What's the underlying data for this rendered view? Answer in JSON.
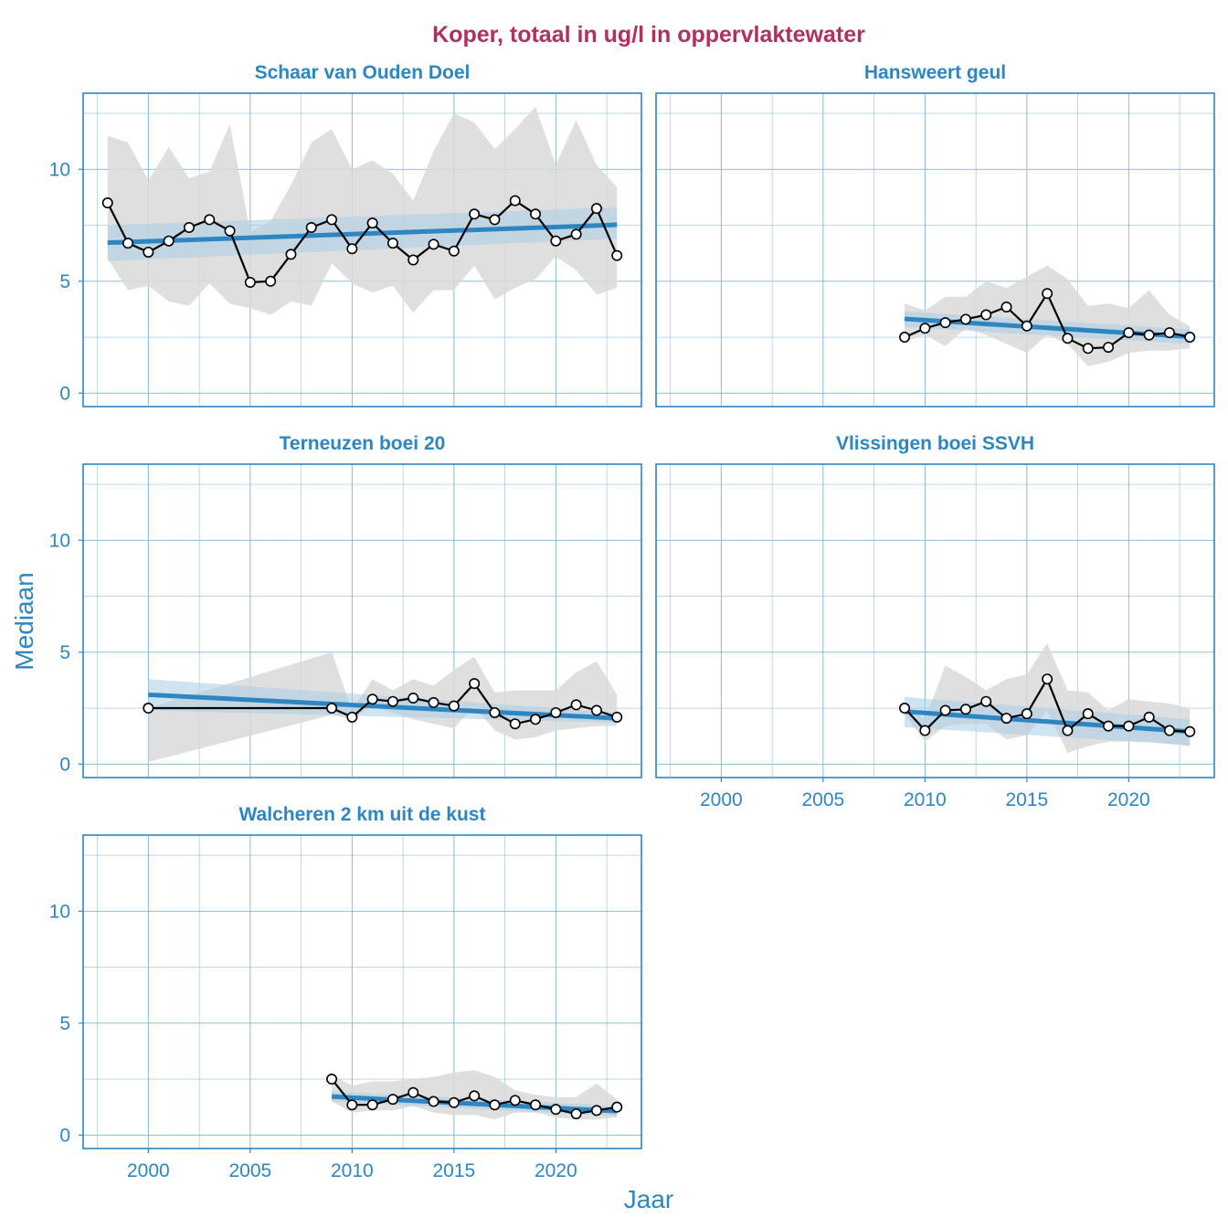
{
  "chart_data": {
    "type": "line",
    "title": "Koper, totaal in ug/l in oppervlaktewater",
    "xlabel": "Jaar",
    "ylabel": "Mediaan",
    "xlim": [
      1996.8,
      2024.2
    ],
    "ylim": [
      -0.6,
      13.4
    ],
    "x_ticks": [
      2000,
      2005,
      2010,
      2015,
      2020
    ],
    "y_ticks": [
      0,
      5,
      10
    ],
    "grid": true,
    "colors": {
      "line": "#000000",
      "point_fill": "#ffffff",
      "trend": "#2e86c1",
      "trend_band": "#a9cce3",
      "range_band": "#d9d9d9",
      "grid": "#7fb3d5",
      "frame": "#2e86c1",
      "title": "#b03060",
      "text": "#2e86c1"
    },
    "panels": [
      {
        "title": "Schaar van Ouden Doel",
        "x": [
          1998,
          1999,
          2000,
          2001,
          2002,
          2003,
          2004,
          2005,
          2006,
          2007,
          2008,
          2009,
          2010,
          2011,
          2012,
          2013,
          2014,
          2015,
          2016,
          2017,
          2018,
          2019,
          2020,
          2021,
          2022,
          2023
        ],
        "median": [
          8.5,
          6.7,
          6.3,
          6.8,
          7.4,
          7.75,
          7.25,
          4.95,
          5.0,
          6.2,
          7.4,
          7.75,
          6.45,
          7.6,
          6.7,
          5.95,
          6.65,
          6.35,
          8.0,
          7.75,
          8.6,
          8.0,
          6.8,
          7.1,
          8.25,
          6.15
        ],
        "band_upper": [
          11.5,
          11.2,
          9.5,
          11.0,
          9.6,
          9.9,
          12.0,
          7.2,
          7.7,
          9.3,
          11.2,
          11.8,
          10.0,
          10.4,
          9.8,
          8.6,
          10.8,
          12.5,
          12.1,
          10.9,
          11.8,
          12.8,
          10.2,
          12.2,
          10.2,
          9.2
        ],
        "band_lower": [
          6.0,
          4.6,
          4.8,
          4.1,
          3.9,
          4.9,
          4.0,
          3.8,
          3.5,
          4.1,
          3.9,
          5.8,
          4.9,
          4.5,
          4.8,
          3.6,
          4.6,
          4.6,
          5.7,
          4.2,
          4.7,
          5.1,
          6.1,
          5.5,
          4.4,
          4.7
        ],
        "trend": {
          "x": [
            1998,
            2023
          ],
          "y": [
            6.72,
            7.52
          ],
          "ci_lower": [
            5.9,
            6.9
          ],
          "ci_upper": [
            7.5,
            8.3
          ]
        }
      },
      {
        "title": "Hansweert geul",
        "x": [
          2009,
          2010,
          2011,
          2012,
          2013,
          2014,
          2015,
          2016,
          2017,
          2018,
          2019,
          2020,
          2021,
          2022,
          2023
        ],
        "median": [
          2.5,
          2.9,
          3.15,
          3.3,
          3.5,
          3.85,
          3.0,
          4.45,
          2.45,
          2.0,
          2.05,
          2.7,
          2.6,
          2.7,
          2.5
        ],
        "band_upper": [
          4.0,
          3.7,
          4.3,
          4.3,
          5.0,
          4.7,
          5.2,
          5.7,
          5.1,
          3.9,
          4.0,
          3.8,
          4.6,
          3.5,
          3.0
        ],
        "band_lower": [
          2.3,
          2.6,
          2.1,
          2.9,
          2.6,
          2.2,
          1.8,
          2.6,
          2.2,
          1.2,
          1.4,
          1.8,
          1.9,
          1.9,
          2.0
        ],
        "trend": {
          "x": [
            2009,
            2023
          ],
          "y": [
            3.32,
            2.52
          ],
          "ci_lower": [
            2.95,
            2.2
          ],
          "ci_upper": [
            3.65,
            2.85
          ]
        }
      },
      {
        "title": "Terneuzen boei 20",
        "x": [
          2000,
          2009,
          2010,
          2011,
          2012,
          2013,
          2014,
          2015,
          2016,
          2017,
          2018,
          2019,
          2020,
          2021,
          2022,
          2023
        ],
        "median": [
          2.5,
          2.5,
          2.1,
          2.9,
          2.8,
          2.95,
          2.75,
          2.6,
          3.6,
          2.3,
          1.8,
          2.0,
          2.3,
          2.65,
          2.4,
          2.1
        ],
        "band_upper": [
          2.5,
          5.0,
          2.4,
          3.8,
          3.3,
          3.8,
          3.5,
          4.2,
          4.8,
          3.2,
          3.3,
          3.3,
          3.3,
          4.1,
          4.6,
          3.1
        ],
        "band_lower": [
          0.1,
          2.2,
          2.0,
          2.6,
          2.3,
          2.0,
          1.8,
          1.6,
          2.6,
          1.5,
          1.1,
          1.2,
          1.5,
          1.6,
          1.7,
          1.7
        ],
        "trend": {
          "x": [
            2000,
            2023
          ],
          "y": [
            3.1,
            2.05
          ],
          "ci_lower": [
            2.4,
            1.85
          ],
          "ci_upper": [
            3.8,
            2.3
          ]
        }
      },
      {
        "title": "Vlissingen boei SSVH",
        "x": [
          2009,
          2010,
          2011,
          2012,
          2013,
          2014,
          2015,
          2016,
          2017,
          2018,
          2019,
          2020,
          2021,
          2022,
          2023
        ],
        "median": [
          2.5,
          1.5,
          2.4,
          2.45,
          2.8,
          2.05,
          2.25,
          3.8,
          1.5,
          2.25,
          1.7,
          1.7,
          2.1,
          1.5,
          1.45
        ],
        "band_upper": [
          2.6,
          2.0,
          4.4,
          3.9,
          3.3,
          3.8,
          4.0,
          5.4,
          3.3,
          3.2,
          2.4,
          2.9,
          2.8,
          2.7,
          2.5
        ],
        "band_lower": [
          2.2,
          1.0,
          1.7,
          1.8,
          1.8,
          1.1,
          1.3,
          2.4,
          0.5,
          0.8,
          1.0,
          1.0,
          1.0,
          0.9,
          0.8
        ],
        "trend": {
          "x": [
            2009,
            2023
          ],
          "y": [
            2.35,
            1.45
          ],
          "ci_lower": [
            1.65,
            0.85
          ],
          "ci_upper": [
            3.0,
            2.0
          ]
        }
      },
      {
        "title": "Walcheren 2 km uit de kust",
        "x": [
          2009,
          2010,
          2011,
          2012,
          2013,
          2014,
          2015,
          2016,
          2017,
          2018,
          2019,
          2020,
          2021,
          2022,
          2023
        ],
        "median": [
          2.5,
          1.35,
          1.35,
          1.6,
          1.9,
          1.5,
          1.45,
          1.75,
          1.35,
          1.55,
          1.35,
          1.15,
          0.95,
          1.1,
          1.25
        ],
        "band_upper": [
          2.7,
          2.2,
          2.4,
          2.4,
          2.5,
          2.6,
          2.8,
          2.9,
          2.6,
          2.0,
          1.8,
          1.7,
          1.7,
          2.3,
          1.6
        ],
        "band_lower": [
          1.5,
          1.0,
          1.1,
          1.1,
          1.3,
          1.0,
          0.9,
          0.9,
          0.7,
          1.0,
          1.0,
          0.8,
          0.7,
          0.7,
          0.8
        ],
        "trend": {
          "x": [
            2009,
            2023
          ],
          "y": [
            1.72,
            1.07
          ],
          "ci_lower": [
            1.5,
            0.85
          ],
          "ci_upper": [
            1.95,
            1.3
          ]
        }
      }
    ]
  }
}
